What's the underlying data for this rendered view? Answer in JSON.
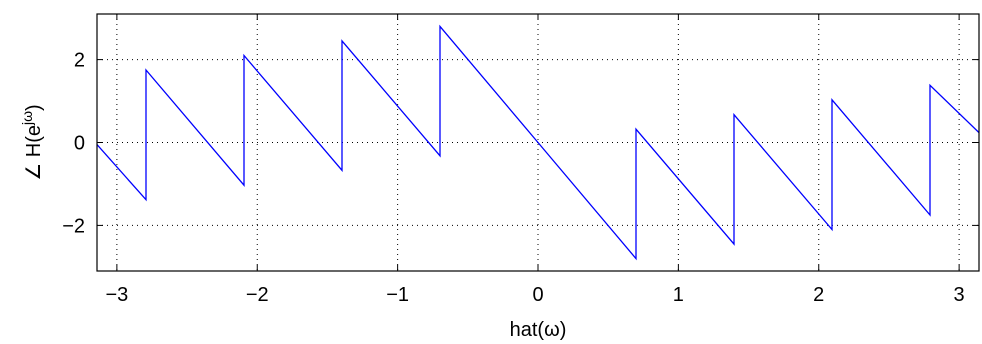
{
  "chart_data": {
    "type": "line",
    "xlabel": "hat(ω)",
    "ylabel": "∠ H(e^{jω})",
    "ylabel_parts": {
      "prefix": "∠ H(e",
      "sup": "jω",
      "suffix": ")"
    },
    "xlim": [
      -3.1416,
      3.1416
    ],
    "ylim": [
      -3.1,
      3.1
    ],
    "xticks": [
      -3,
      -2,
      -1,
      0,
      1,
      2,
      3
    ],
    "xtick_labels": [
      "−3",
      "−2",
      "−1",
      "0",
      "1",
      "2",
      "3"
    ],
    "yticks": [
      -2,
      0,
      2
    ],
    "ytick_labels": [
      "−2",
      "0",
      "2"
    ],
    "grid": true,
    "series": [
      {
        "color": "#0000ff",
        "x": [
          -3.1416,
          -2.7925,
          -2.7925,
          -2.0944,
          -2.0944,
          -1.3963,
          -1.3963,
          -0.6981,
          -0.6981,
          0,
          0.6981,
          0.6981,
          1.3963,
          1.3963,
          2.0944,
          2.0944,
          2.7925,
          2.7925,
          3.1416
        ],
        "y": [
          -0.05,
          -1.38,
          1.75,
          -1.03,
          2.1,
          -0.67,
          2.45,
          -0.32,
          2.8,
          0,
          -2.8,
          0.32,
          -2.45,
          0.67,
          -2.1,
          1.03,
          -1.75,
          1.38,
          0.24
        ]
      }
    ]
  }
}
